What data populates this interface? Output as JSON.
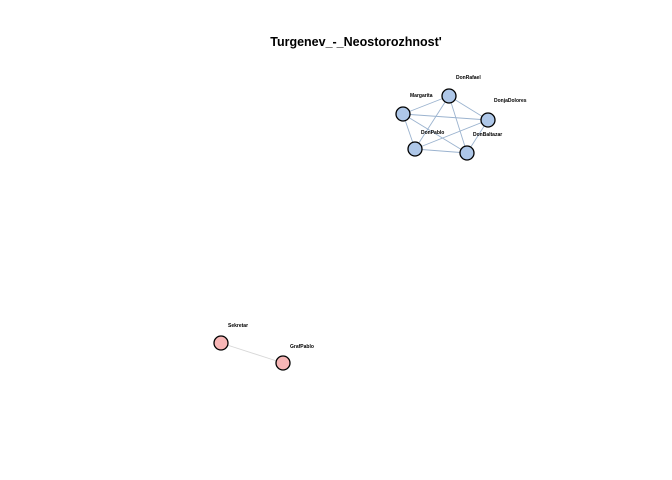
{
  "title": "Turgenev_-_Neostorozhnost'",
  "groups": [
    {
      "name": "group-1",
      "fill": "#aec7e8",
      "edge_color": "#9bb3cf"
    },
    {
      "name": "group-2",
      "fill": "#f7b6b6",
      "edge_color": "#d8d8d8"
    }
  ],
  "nodes": [
    {
      "id": "DonRafael",
      "label": "DonRafael",
      "group": 0
    },
    {
      "id": "Margarita",
      "label": "Margarita",
      "group": 0
    },
    {
      "id": "DonjaDolores",
      "label": "DonjaDolores",
      "group": 0
    },
    {
      "id": "DonPablo",
      "label": "DonPablo",
      "group": 0
    },
    {
      "id": "DonBaltazar",
      "label": "DonBaltazar",
      "group": 0
    },
    {
      "id": "Sekretar",
      "label": "Sekretar",
      "group": 1
    },
    {
      "id": "GrafPablo",
      "label": "GrafPablo",
      "group": 1
    }
  ],
  "edges": [
    [
      "DonRafael",
      "Margarita"
    ],
    [
      "DonRafael",
      "DonjaDolores"
    ],
    [
      "DonRafael",
      "DonPablo"
    ],
    [
      "DonRafael",
      "DonBaltazar"
    ],
    [
      "Margarita",
      "DonjaDolores"
    ],
    [
      "Margarita",
      "DonPablo"
    ],
    [
      "Margarita",
      "DonBaltazar"
    ],
    [
      "DonjaDolores",
      "DonPablo"
    ],
    [
      "DonjaDolores",
      "DonBaltazar"
    ],
    [
      "DonPablo",
      "DonBaltazar"
    ],
    [
      "Sekretar",
      "GrafPablo"
    ]
  ]
}
